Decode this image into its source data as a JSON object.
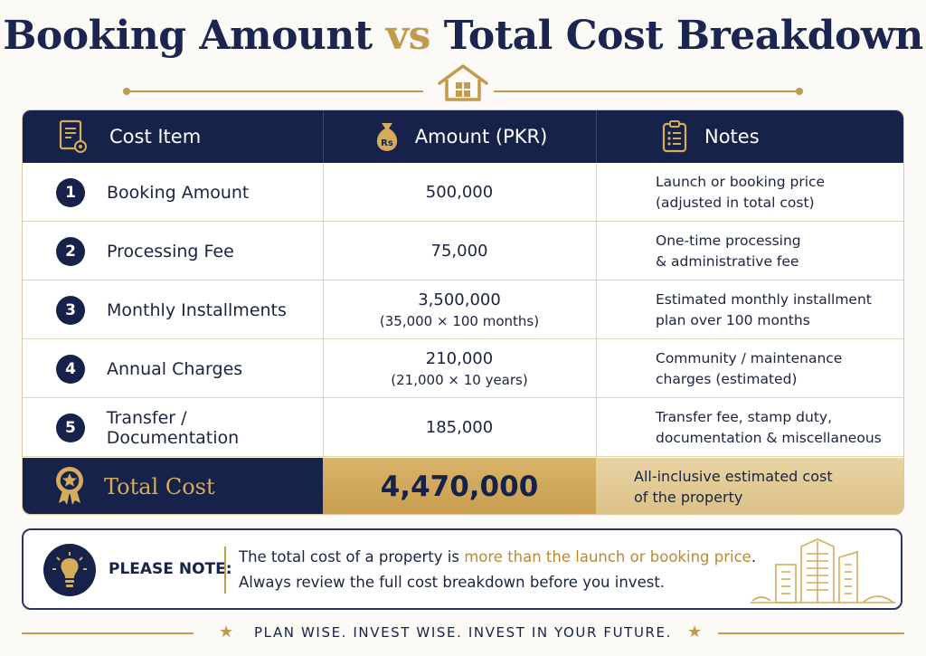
{
  "title": {
    "part1": "Booking Amount",
    "vs": "vs",
    "part2": "Total Cost Breakdown"
  },
  "colors": {
    "navy": "#17224a",
    "gold": "#c19a4b",
    "background": "#fbfaf7"
  },
  "table": {
    "headers": {
      "item": "Cost Item",
      "amount": "Amount (PKR)",
      "notes": "Notes",
      "amount_icon_text": "Rs"
    },
    "rows": [
      {
        "num": "1",
        "item": "Booking Amount",
        "amount": "500,000",
        "amount_sub": "",
        "note1": "Launch or booking price",
        "note2": "(adjusted in total cost)"
      },
      {
        "num": "2",
        "item": "Processing Fee",
        "amount": "75,000",
        "amount_sub": "",
        "note1": "One-time processing",
        "note2": "& administrative fee"
      },
      {
        "num": "3",
        "item": "Monthly Installments",
        "amount": "3,500,000",
        "amount_sub": "(35,000 × 100 months)",
        "note1": "Estimated monthly installment",
        "note2": "plan over 100 months"
      },
      {
        "num": "4",
        "item": "Annual Charges",
        "amount": "210,000",
        "amount_sub": "(21,000 × 10 years)",
        "note1": "Community / maintenance",
        "note2": "charges (estimated)"
      },
      {
        "num": "5",
        "item": "Transfer / Documentation",
        "amount": "185,000",
        "amount_sub": "",
        "note1": "Transfer fee, stamp duty,",
        "note2": "documentation & miscellaneous"
      }
    ],
    "total": {
      "label": "Total Cost",
      "amount": "4,470,000",
      "note1": "All-inclusive estimated cost",
      "note2": "of the property"
    }
  },
  "note": {
    "label": "PLEASE NOTE:",
    "line1_pre": "The total cost of a property is ",
    "line1_highlight": "more than the launch or booking price",
    "line1_post": ".",
    "line2": "Always review the full cost breakdown before you invest."
  },
  "footer": {
    "text": "PLAN WISE. INVEST WISE. INVEST IN YOUR FUTURE."
  },
  "icons": [
    "house-icon",
    "document-icon",
    "money-bag-icon",
    "clipboard-icon",
    "medal-icon",
    "lightbulb-icon",
    "star-icon",
    "city-buildings-icon"
  ]
}
